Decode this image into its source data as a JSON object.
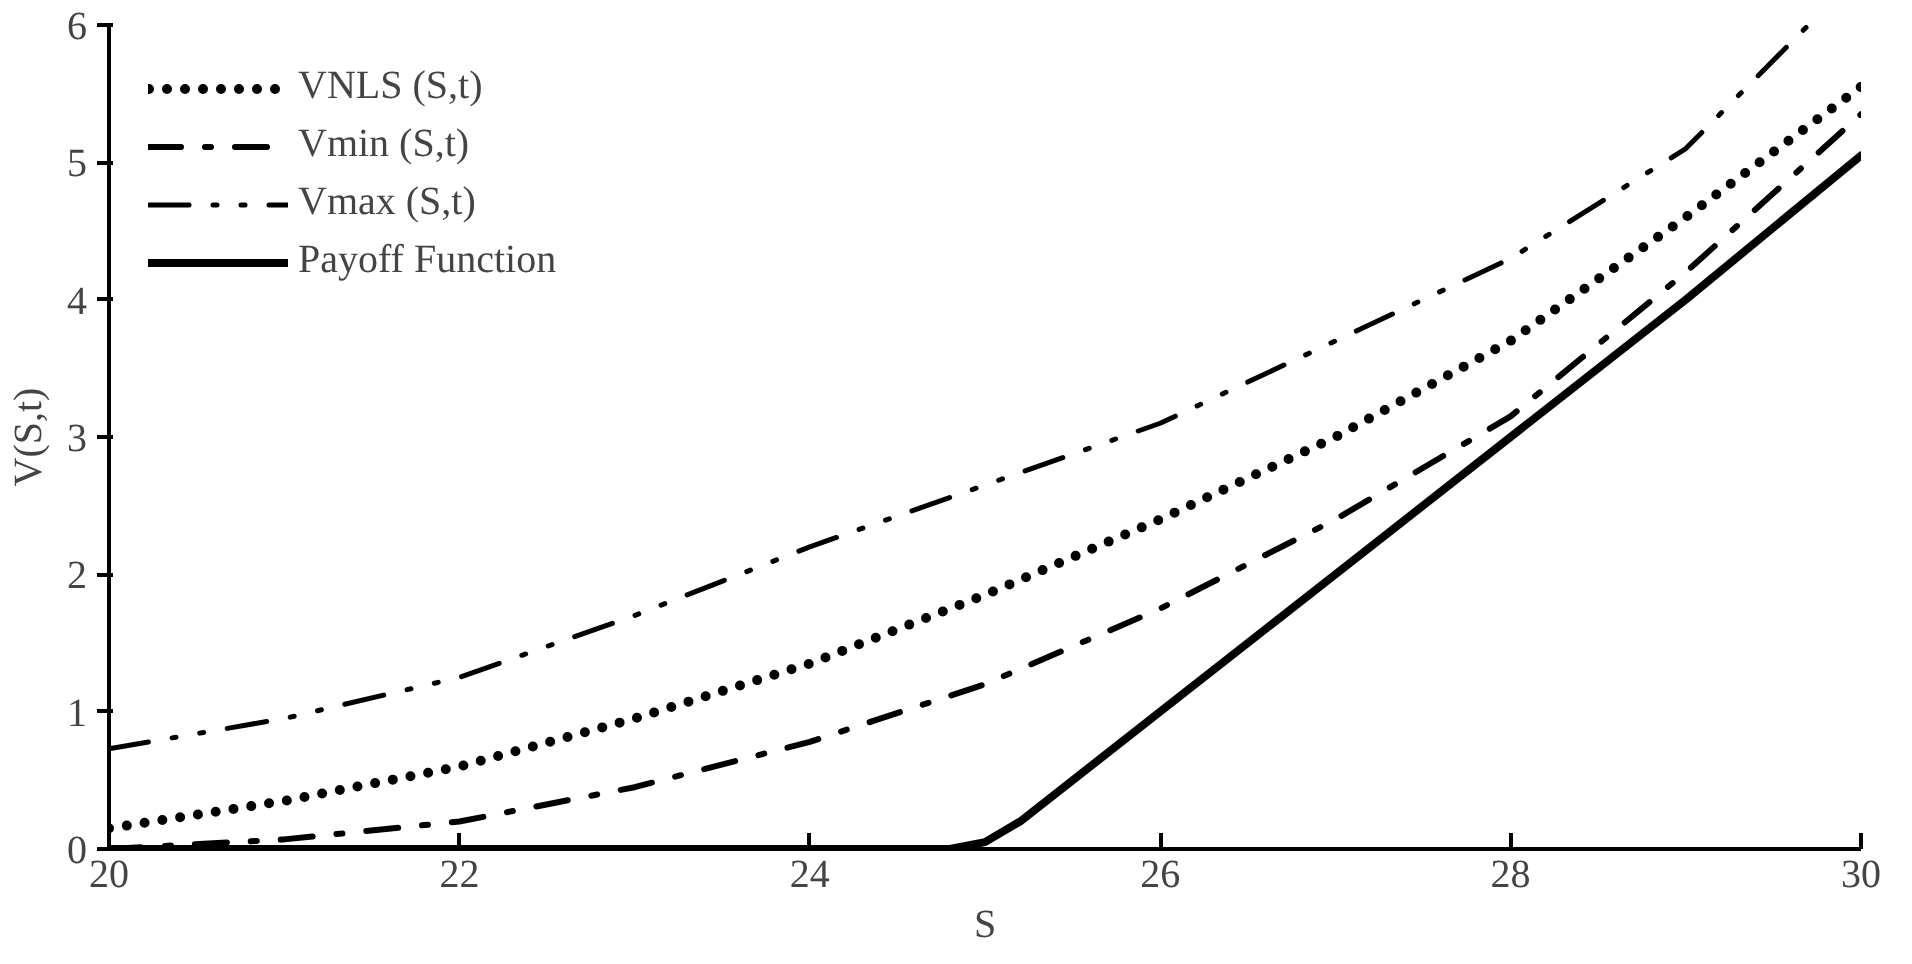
{
  "chart_data": {
    "type": "line",
    "xlabel": "S",
    "ylabel": "V(S,t)",
    "xlim": [
      20,
      30
    ],
    "ylim": [
      0,
      6
    ],
    "xticks": [
      20,
      22,
      24,
      26,
      28,
      30
    ],
    "yticks": [
      0,
      1,
      2,
      3,
      4,
      5,
      6
    ],
    "grid": false,
    "legend": "top left",
    "series": [
      {
        "name": "VNLS (S,t)",
        "color": "#000000",
        "line_style": "dotted",
        "x": [
          20,
          21,
          22,
          23,
          24,
          25,
          26,
          27,
          28,
          29,
          30
        ],
        "values": [
          0.15,
          0.35,
          0.6,
          0.95,
          1.35,
          1.85,
          2.4,
          3.0,
          3.7,
          4.6,
          5.55
        ]
      },
      {
        "name": "Vmin (S,t)",
        "color": "#000000",
        "line_style": "dashdot",
        "x": [
          20,
          21,
          22,
          23,
          24,
          25,
          26,
          27,
          28,
          29,
          30
        ],
        "values": [
          0.0,
          0.07,
          0.2,
          0.45,
          0.78,
          1.2,
          1.75,
          2.4,
          3.15,
          4.2,
          5.35
        ]
      },
      {
        "name": "Vmax (S,t)",
        "color": "#000000",
        "line_style": "dashdotdot",
        "x": [
          20,
          21,
          22,
          23,
          24,
          25,
          26,
          27,
          28,
          29,
          29.7
        ],
        "values": [
          0.73,
          0.95,
          1.25,
          1.7,
          2.2,
          2.65,
          3.1,
          3.7,
          4.3,
          5.1,
          6.0
        ]
      },
      {
        "name": "Payoff Function",
        "color": "#000000",
        "line_style": "solid",
        "x": [
          20,
          24.8,
          25.0,
          25.2,
          26,
          27,
          28,
          29,
          30
        ],
        "values": [
          0,
          0,
          0.05,
          0.2,
          1.0,
          2.0,
          3.0,
          4.0,
          5.05
        ]
      }
    ]
  }
}
